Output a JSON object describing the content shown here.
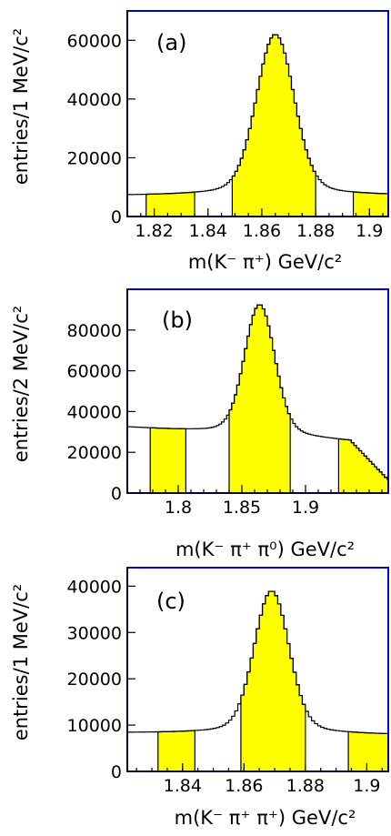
{
  "colors": {
    "signal_fill": "#ffff00",
    "frame": "#0000cc",
    "line": "#000000"
  },
  "chart_data": [
    {
      "type": "histogram",
      "panel": "(a)",
      "xlabel": "m(K⁻ π⁺) GeV/c²",
      "ylabel": "entries/1 MeV/c²",
      "xlim": [
        1.81,
        1.907
      ],
      "ylim": [
        0,
        70000
      ],
      "xticks": [
        1.82,
        1.84,
        1.86,
        1.88,
        1.9
      ],
      "xtick_labels": [
        "1.82",
        "1.84",
        "1.86",
        "1.88",
        "1.9"
      ],
      "yticks": [
        0,
        20000,
        40000,
        60000
      ],
      "ytick_labels": [
        "0",
        "20000",
        "40000",
        "60000"
      ],
      "bin_width": 0.001,
      "peak": {
        "mass": 1.865,
        "height": 62000,
        "sigma": 0.0068,
        "background": 7000,
        "bg_slope": 0.0
      },
      "shaded_regions": [
        [
          1.817,
          1.835
        ],
        [
          1.849,
          1.88
        ],
        [
          1.894,
          1.907
        ]
      ]
    },
    {
      "type": "histogram",
      "panel": "(b)",
      "xlabel": "m(K⁻ π⁺ π⁰) GeV/c²",
      "ylabel": "entries/2 MeV/c²",
      "xlim": [
        1.76,
        1.965
      ],
      "ylim": [
        0,
        100000
      ],
      "xticks": [
        1.8,
        1.85,
        1.9
      ],
      "xtick_labels": [
        "1.8",
        "1.85",
        "1.9"
      ],
      "yticks": [
        0,
        20000,
        40000,
        60000,
        80000
      ],
      "ytick_labels": [
        "0",
        "20000",
        "40000",
        "60000",
        "80000"
      ],
      "bin_width": 0.002,
      "peak": {
        "mass": 1.864,
        "height": 92500,
        "sigma": 0.0115,
        "background": 28000,
        "bg_slope": -4000,
        "tail_drop": true
      },
      "shaded_regions": [
        [
          1.778,
          1.806
        ],
        [
          1.84,
          1.888
        ],
        [
          1.926,
          1.965
        ]
      ]
    },
    {
      "type": "histogram",
      "panel": "(c)",
      "xlabel": "m(K⁻ π⁺ π⁺) GeV/c²",
      "ylabel": "entries/1 MeV/c²",
      "xlim": [
        1.822,
        1.907
      ],
      "ylim": [
        0,
        44000
      ],
      "xticks": [
        1.84,
        1.86,
        1.88,
        1.9
      ],
      "xtick_labels": [
        "1.84",
        "1.86",
        "1.88",
        "1.9"
      ],
      "yticks": [
        0,
        10000,
        20000,
        30000,
        40000
      ],
      "ytick_labels": [
        "0",
        "10000",
        "20000",
        "30000",
        "40000"
      ],
      "bin_width": 0.001,
      "peak": {
        "mass": 1.869,
        "height": 39000,
        "sigma": 0.0055,
        "background": 8000,
        "bg_slope": -500
      },
      "shaded_regions": [
        [
          1.832,
          1.844
        ],
        [
          1.859,
          1.88
        ],
        [
          1.894,
          1.907
        ]
      ]
    }
  ]
}
